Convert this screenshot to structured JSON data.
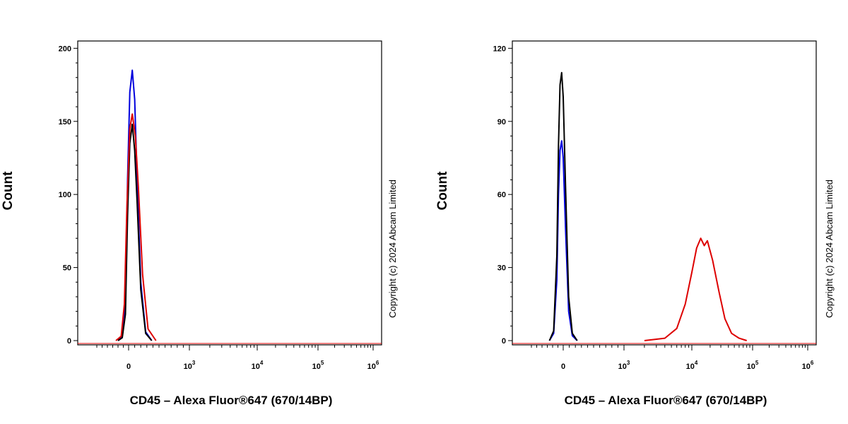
{
  "chart_data": [
    {
      "type": "line",
      "title": "",
      "xlabel": "CD45 – Alexa Fluor®647 (670/14BP)",
      "ylabel": "Count",
      "ylim": [
        0,
        205
      ],
      "yticks": [
        0,
        50,
        100,
        150,
        200
      ],
      "ytick_labels": [
        "0",
        "50",
        "100",
        "150",
        "200"
      ],
      "x_scale": "biexponential",
      "xticks": [
        0,
        1000,
        10000,
        100000,
        1000000
      ],
      "xtick_labels": [
        {
          "base": "0",
          "sup": ""
        },
        {
          "base": "10",
          "sup": "3"
        },
        {
          "base": "10",
          "sup": "4"
        },
        {
          "base": "10",
          "sup": "5"
        },
        {
          "base": "10",
          "sup": "6"
        }
      ],
      "annotation": "Copyright (c) 2024 Abcam Limited",
      "series": [
        {
          "color": "#0000dd",
          "x": [
            -200,
            -120,
            -60,
            -20,
            20,
            60,
            100,
            140,
            200,
            280,
            380
          ],
          "y": [
            0,
            3,
            25,
            110,
            170,
            185,
            165,
            110,
            40,
            6,
            0
          ]
        },
        {
          "color": "#000000",
          "x": [
            -200,
            -120,
            -60,
            -20,
            20,
            60,
            100,
            140,
            200,
            280,
            380
          ],
          "y": [
            0,
            2,
            18,
            85,
            135,
            148,
            130,
            95,
            35,
            5,
            0
          ]
        },
        {
          "color": "#dd0000",
          "x": [
            -240,
            -140,
            -80,
            -30,
            20,
            60,
            110,
            160,
            230,
            320,
            450
          ],
          "y": [
            0,
            3,
            25,
            95,
            145,
            155,
            140,
            105,
            45,
            8,
            0
          ]
        }
      ]
    },
    {
      "type": "line",
      "title": "",
      "xlabel": "CD45 – Alexa Fluor®647 (670/14BP)",
      "ylabel": "Count",
      "ylim": [
        0,
        123
      ],
      "yticks": [
        0,
        30,
        60,
        90,
        120
      ],
      "ytick_labels": [
        "0",
        "30",
        "60",
        "90",
        "120"
      ],
      "x_scale": "biexponential",
      "xticks": [
        0,
        1000,
        10000,
        100000,
        1000000
      ],
      "xtick_labels": [
        {
          "base": "0",
          "sup": ""
        },
        {
          "base": "10",
          "sup": "3"
        },
        {
          "base": "10",
          "sup": "4"
        },
        {
          "base": "10",
          "sup": "5"
        },
        {
          "base": "10",
          "sup": "6"
        }
      ],
      "annotation": "Copyright (c) 2024 Abcam Limited",
      "series": [
        {
          "color": "#0000dd",
          "x": [
            -260,
            -180,
            -120,
            -90,
            -60,
            -30,
            0,
            40,
            90,
            150,
            230
          ],
          "y": [
            0,
            3,
            25,
            60,
            78,
            82,
            75,
            45,
            12,
            2,
            0
          ]
        },
        {
          "color": "#000000",
          "x": [
            -260,
            -180,
            -120,
            -90,
            -60,
            -30,
            0,
            40,
            90,
            150,
            230
          ],
          "y": [
            0,
            4,
            35,
            80,
            105,
            110,
            100,
            62,
            18,
            3,
            0
          ]
        },
        {
          "color": "#dd0000",
          "x": [
            2000,
            4000,
            6000,
            8000,
            10000,
            12000,
            14000,
            16000,
            18000,
            22000,
            28000,
            35000,
            45000,
            60000,
            80000
          ],
          "y": [
            0,
            1,
            5,
            15,
            28,
            38,
            42,
            39,
            41,
            33,
            20,
            9,
            3,
            1,
            0
          ]
        }
      ]
    }
  ]
}
